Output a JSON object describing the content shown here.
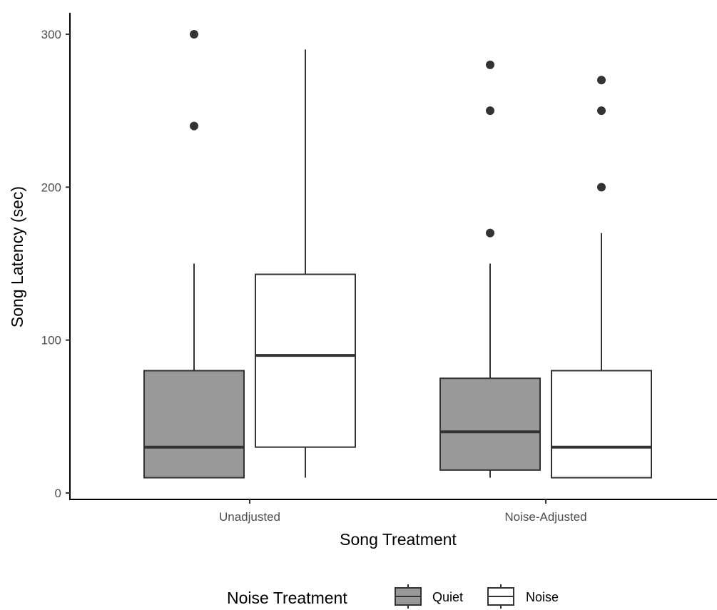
{
  "chart_data": {
    "type": "boxplot",
    "xlabel": "Song Treatment",
    "ylabel": "Song Latency (sec)",
    "ylim": [
      0,
      300
    ],
    "yticks": [
      0,
      100,
      200,
      300
    ],
    "categories": [
      "Unadjusted",
      "Noise-Adjusted"
    ],
    "grid": false,
    "legend": {
      "title": "Noise Treatment",
      "position": "bottom",
      "items": [
        {
          "label": "Quiet",
          "color": "#999999"
        },
        {
          "label": "Noise",
          "color": "#ffffff"
        }
      ]
    },
    "series": [
      {
        "name": "Quiet",
        "fill": "#999999",
        "boxes": [
          {
            "category": "Unadjusted",
            "whisker_low": 10,
            "q1": 10,
            "median": 30,
            "q3": 80,
            "whisker_high": 150,
            "outliers": [
              240,
              300
            ]
          },
          {
            "category": "Noise-Adjusted",
            "whisker_low": 10,
            "q1": 15,
            "median": 40,
            "q3": 75,
            "whisker_high": 150,
            "outliers": [
              170,
              250,
              280
            ]
          }
        ]
      },
      {
        "name": "Noise",
        "fill": "#ffffff",
        "boxes": [
          {
            "category": "Unadjusted",
            "whisker_low": 10,
            "q1": 30,
            "median": 90,
            "q3": 143,
            "whisker_high": 290,
            "outliers": []
          },
          {
            "category": "Noise-Adjusted",
            "whisker_low": 10,
            "q1": 10,
            "median": 30,
            "q3": 80,
            "whisker_high": 170,
            "outliers": [
              200,
              250,
              270
            ]
          }
        ]
      }
    ]
  }
}
